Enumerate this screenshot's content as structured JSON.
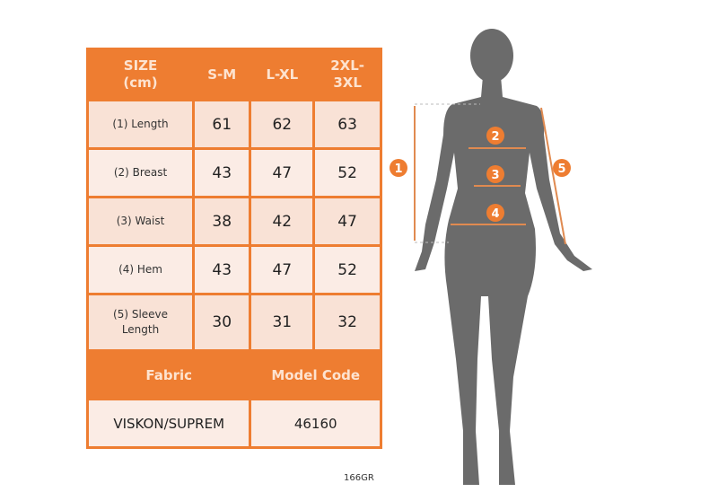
{
  "table": {
    "headers": [
      "SIZE\n(cm)",
      "S-M",
      "L-XL",
      "2XL-\n3XL"
    ],
    "rows": [
      {
        "label": "(1) Length",
        "values": [
          "61",
          "62",
          "63"
        ]
      },
      {
        "label": "(2) Breast",
        "values": [
          "43",
          "47",
          "52"
        ]
      },
      {
        "label": "(3) Waist",
        "values": [
          "38",
          "42",
          "47"
        ]
      },
      {
        "label": "(4) Hem",
        "values": [
          "43",
          "47",
          "52"
        ]
      },
      {
        "label": "(5) Sleeve\nLength",
        "values": [
          "30",
          "31",
          "32"
        ]
      }
    ],
    "fabric_label": "Fabric",
    "model_code_label": "Model Code",
    "fabric_value": "VISKON/SUPREM",
    "model_code_value": "46160"
  },
  "footer_code": "166GR",
  "figure": {
    "markers": [
      "1",
      "2",
      "3",
      "4",
      "5"
    ]
  },
  "colors": {
    "accent": "#ee7d31",
    "cell": "#f9e2d6",
    "silhouette": "#6b6b6b"
  }
}
